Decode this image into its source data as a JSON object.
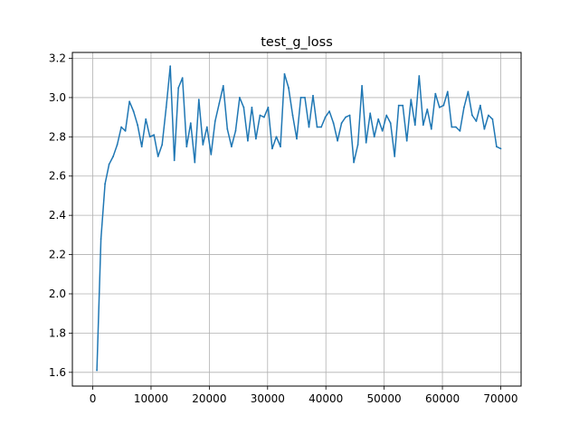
{
  "chart_data": {
    "type": "line",
    "title": "test_g_loss",
    "xlabel": "",
    "ylabel": "",
    "xlim": [
      -3500,
      73500
    ],
    "ylim": [
      1.53,
      3.23
    ],
    "grid": true,
    "line_color": "#1f77b4",
    "x_ticks": [
      0,
      10000,
      20000,
      30000,
      40000,
      50000,
      60000,
      70000
    ],
    "x_tick_labels": [
      "0",
      "10000",
      "20000",
      "30000",
      "40000",
      "50000",
      "60000",
      "70000"
    ],
    "y_ticks": [
      1.6,
      1.8,
      2.0,
      2.2,
      2.4,
      2.6,
      2.8,
      3.0,
      3.2
    ],
    "y_tick_labels": [
      "1.6",
      "1.8",
      "2.0",
      "2.2",
      "2.4",
      "2.6",
      "2.8",
      "3.0",
      "3.2"
    ],
    "series": [
      {
        "x": [
          700,
          1400,
          2100,
          2800,
          3500,
          4200,
          4900,
          5600,
          6300,
          7000,
          7700,
          8400,
          9100,
          9800,
          10500,
          11200,
          11900,
          12600,
          13300,
          14000,
          14700,
          15400,
          16100,
          16800,
          17500,
          18200,
          18900,
          19600,
          20300,
          21000,
          21700,
          22400,
          23100,
          23800,
          24500,
          25200,
          25900,
          26600,
          27300,
          28000,
          28700,
          29400,
          30100,
          30800,
          31500,
          32200,
          32900,
          33600,
          34300,
          35000,
          35700,
          36400,
          37100,
          37800,
          38500,
          39200,
          39900,
          40600,
          41300,
          42000,
          42700,
          43400,
          44100,
          44800,
          45500,
          46200,
          46900,
          47600,
          48300,
          49000,
          49700,
          50400,
          51100,
          51800,
          52500,
          53200,
          53900,
          54600,
          55300,
          56000,
          56700,
          57400,
          58100,
          58800,
          59500,
          60200,
          60900,
          61600,
          62300,
          63000,
          63700,
          64400,
          65100,
          65800,
          66500,
          67200,
          67900,
          68600,
          69300,
          70000
        ],
        "y": [
          1.61,
          2.28,
          2.56,
          2.66,
          2.7,
          2.76,
          2.85,
          2.83,
          2.98,
          2.93,
          2.86,
          2.75,
          2.89,
          2.8,
          2.81,
          2.7,
          2.76,
          2.95,
          3.16,
          2.68,
          3.05,
          3.1,
          2.75,
          2.87,
          2.67,
          2.99,
          2.76,
          2.85,
          2.71,
          2.88,
          2.97,
          3.06,
          2.84,
          2.75,
          2.83,
          3.0,
          2.95,
          2.78,
          2.95,
          2.79,
          2.91,
          2.9,
          2.95,
          2.74,
          2.8,
          2.75,
          3.12,
          3.05,
          2.91,
          2.79,
          3.0,
          3.0,
          2.85,
          3.01,
          2.85,
          2.85,
          2.9,
          2.93,
          2.87,
          2.78,
          2.87,
          2.9,
          2.91,
          2.67,
          2.76,
          3.06,
          2.77,
          2.92,
          2.8,
          2.89,
          2.83,
          2.91,
          2.87,
          2.7,
          2.96,
          2.96,
          2.78,
          2.99,
          2.86,
          3.11,
          2.86,
          2.94,
          2.84,
          3.02,
          2.95,
          2.96,
          3.03,
          2.85,
          2.85,
          2.83,
          2.95,
          3.03,
          2.91,
          2.88,
          2.96,
          2.84,
          2.91,
          2.89,
          2.75,
          2.74
        ]
      }
    ]
  }
}
